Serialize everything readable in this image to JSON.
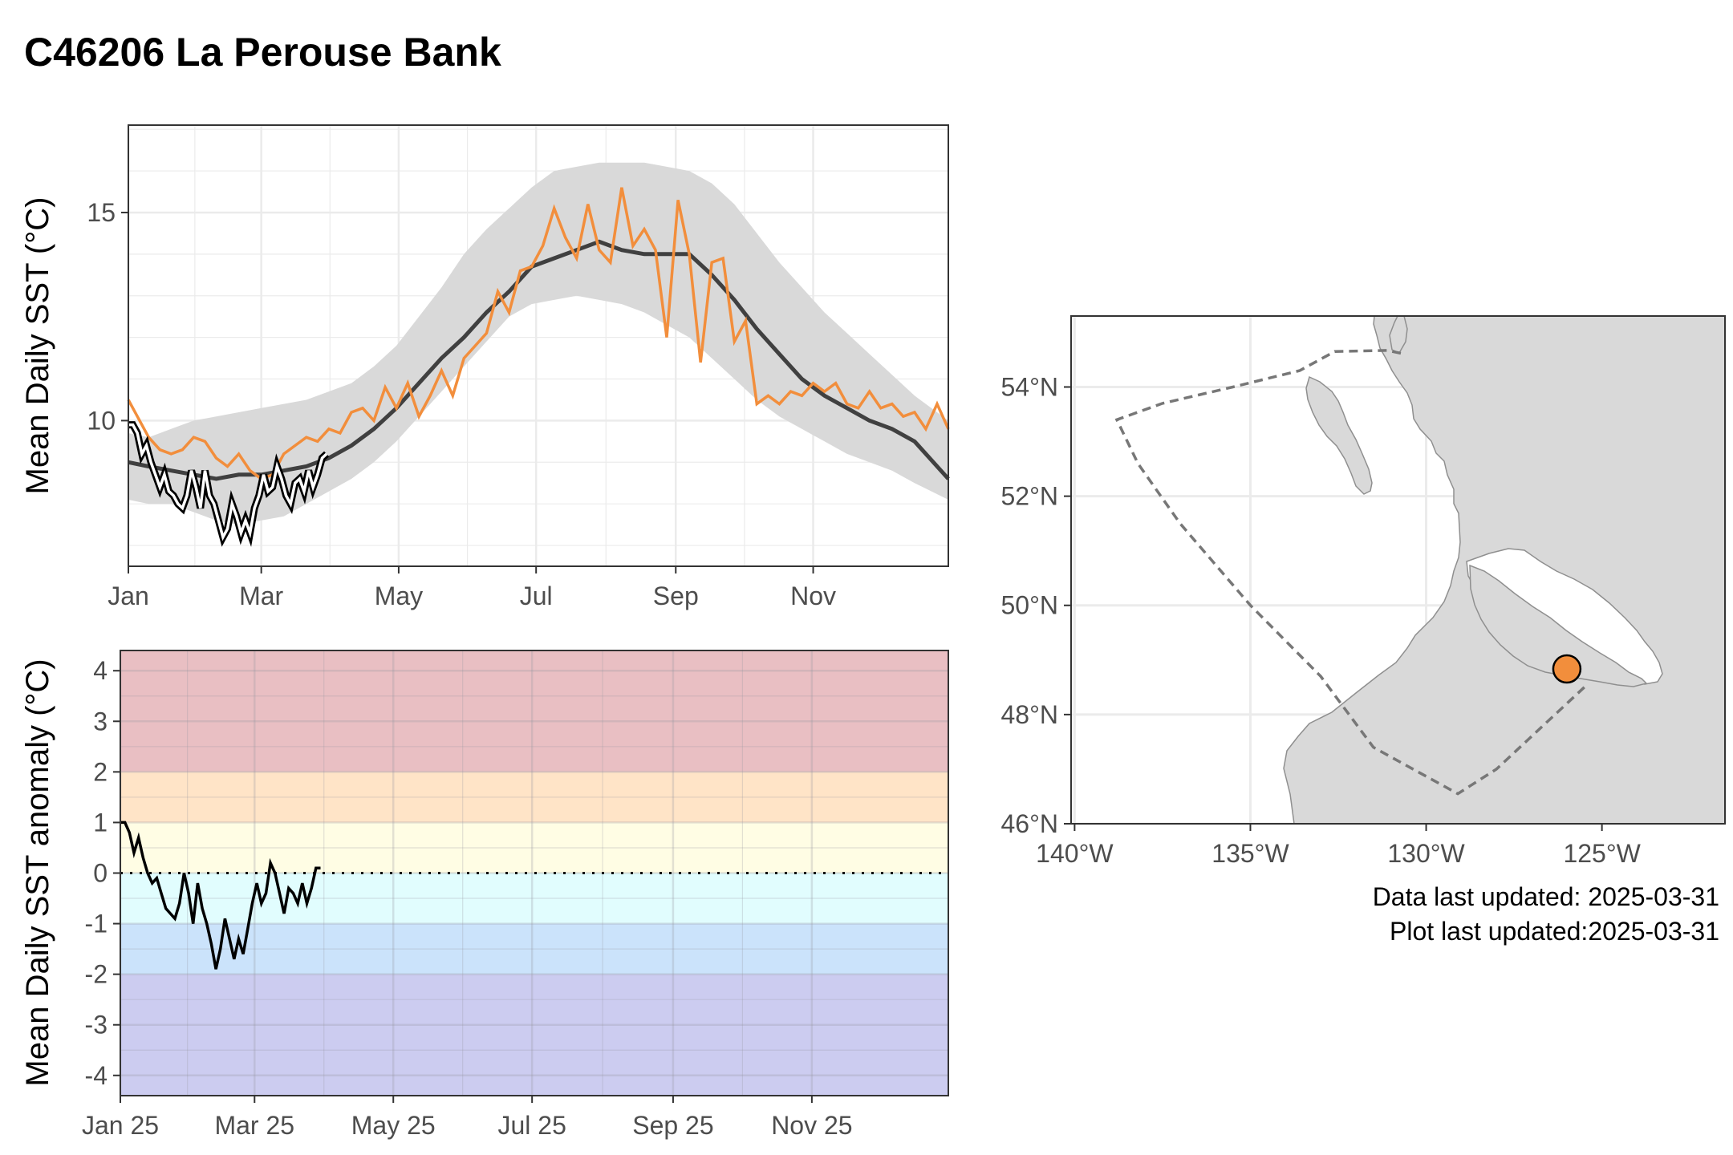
{
  "title": "C46206 La Perouse Bank",
  "footer": {
    "data_updated": "Data last updated: 2025-03-31",
    "plot_updated": "Plot last updated:2025-03-31"
  },
  "colors": {
    "current_year": "#F28E3C",
    "climatology": "#404040",
    "range_band": "#D9D9D9",
    "land": "#D9D9D9",
    "buoy": "#F28E3C"
  },
  "chart_data": [
    {
      "type": "line",
      "ylabel": "Mean Daily SST (°C)",
      "xlabel": "",
      "ylim": [
        6.5,
        17.1
      ],
      "xlim": [
        1,
        365
      ],
      "x_ticks": [
        {
          "day": 1,
          "label": "Jan"
        },
        {
          "day": 60,
          "label": "Mar"
        },
        {
          "day": 121,
          "label": "May"
        },
        {
          "day": 182,
          "label": "Jul"
        },
        {
          "day": 244,
          "label": "Sep"
        },
        {
          "day": 305,
          "label": "Nov"
        }
      ],
      "y_ticks": [
        10,
        15
      ],
      "grid": true,
      "series": [
        {
          "style": "band",
          "x": [
            1,
            10,
            20,
            30,
            40,
            50,
            60,
            70,
            80,
            90,
            100,
            110,
            120,
            130,
            140,
            150,
            160,
            170,
            180,
            190,
            200,
            210,
            220,
            230,
            240,
            250,
            260,
            270,
            280,
            290,
            300,
            310,
            320,
            330,
            340,
            350,
            365
          ],
          "upper": [
            9.7,
            9.6,
            9.8,
            10.0,
            10.1,
            10.2,
            10.3,
            10.4,
            10.5,
            10.7,
            10.9,
            11.3,
            11.8,
            12.5,
            13.2,
            14.0,
            14.6,
            15.1,
            15.6,
            16.0,
            16.1,
            16.2,
            16.2,
            16.2,
            16.1,
            16.0,
            15.7,
            15.2,
            14.5,
            13.8,
            13.2,
            12.6,
            12.1,
            11.6,
            11.1,
            10.6,
            10.0
          ],
          "lower": [
            8.1,
            8.0,
            8.0,
            7.8,
            7.6,
            7.5,
            7.6,
            7.7,
            8.0,
            8.3,
            8.6,
            9.0,
            9.5,
            10.1,
            10.7,
            11.3,
            11.9,
            12.5,
            12.8,
            12.9,
            13.0,
            12.9,
            12.8,
            12.6,
            12.3,
            12.0,
            11.5,
            11.0,
            10.5,
            10.1,
            9.8,
            9.5,
            9.2,
            9.0,
            8.8,
            8.5,
            8.1
          ]
        },
        {
          "style": "climatology",
          "x": [
            1,
            10,
            20,
            30,
            40,
            50,
            60,
            70,
            80,
            90,
            100,
            110,
            120,
            130,
            140,
            150,
            160,
            170,
            180,
            190,
            200,
            210,
            220,
            230,
            240,
            250,
            260,
            270,
            280,
            290,
            300,
            310,
            320,
            330,
            340,
            350,
            365
          ],
          "values": [
            9.0,
            8.9,
            8.8,
            8.7,
            8.6,
            8.7,
            8.7,
            8.8,
            8.9,
            9.1,
            9.4,
            9.8,
            10.3,
            10.9,
            11.5,
            12.0,
            12.6,
            13.1,
            13.7,
            13.9,
            14.1,
            14.3,
            14.1,
            14.0,
            14.0,
            14.0,
            13.5,
            12.9,
            12.2,
            11.6,
            11.0,
            10.6,
            10.3,
            10.0,
            9.8,
            9.5,
            8.6
          ]
        },
        {
          "name": "",
          "style": "prior-year",
          "x": [
            1,
            5,
            10,
            15,
            20,
            25,
            30,
            35,
            40,
            45,
            50,
            55,
            60,
            65,
            70,
            75,
            80,
            85,
            90,
            95,
            100,
            105,
            110,
            115,
            120,
            125,
            130,
            135,
            140,
            145,
            150,
            155,
            160,
            165,
            170,
            175,
            180,
            185,
            190,
            195,
            200,
            205,
            210,
            215,
            220,
            225,
            230,
            235,
            240,
            245,
            250,
            255,
            260,
            265,
            270,
            275,
            280,
            285,
            290,
            295,
            300,
            305,
            310,
            315,
            320,
            325,
            330,
            335,
            340,
            345,
            350,
            355,
            360,
            365
          ],
          "values": [
            10.5,
            10.1,
            9.6,
            9.3,
            9.2,
            9.3,
            9.6,
            9.5,
            9.1,
            8.9,
            9.2,
            8.8,
            8.6,
            8.7,
            9.2,
            9.4,
            9.6,
            9.5,
            9.8,
            9.7,
            10.2,
            10.3,
            10.0,
            10.8,
            10.3,
            10.9,
            10.1,
            10.6,
            11.2,
            10.6,
            11.5,
            11.8,
            12.1,
            13.1,
            12.6,
            13.6,
            13.7,
            14.2,
            15.1,
            14.4,
            13.9,
            15.2,
            14.1,
            13.8,
            15.6,
            14.2,
            14.6,
            14.1,
            12.0,
            15.3,
            14.0,
            11.4,
            13.8,
            13.9,
            11.9,
            12.4,
            10.4,
            10.6,
            10.4,
            10.7,
            10.6,
            10.9,
            10.7,
            10.9,
            10.4,
            10.3,
            10.7,
            10.3,
            10.4,
            10.1,
            10.2,
            9.8,
            10.4,
            9.8
          ]
        },
        {
          "name": "",
          "style": "current-year",
          "x": [
            1,
            3,
            5,
            7,
            9,
            11,
            13,
            15,
            17,
            19,
            21,
            23,
            25,
            27,
            29,
            31,
            33,
            35,
            37,
            39,
            41,
            43,
            45,
            47,
            49,
            51,
            53,
            55,
            57,
            59,
            61,
            63,
            65,
            67,
            69,
            71,
            73,
            75,
            77,
            79,
            81,
            83,
            85,
            87,
            89
          ],
          "values": [
            9.9,
            9.9,
            9.7,
            9.2,
            9.4,
            9.0,
            8.7,
            8.4,
            8.7,
            8.3,
            8.2,
            8.0,
            7.9,
            8.2,
            8.8,
            8.4,
            7.9,
            8.8,
            8.2,
            8.0,
            7.6,
            7.2,
            7.4,
            8.0,
            7.7,
            7.3,
            7.6,
            7.3,
            7.9,
            8.2,
            8.7,
            8.3,
            8.4,
            8.9,
            8.6,
            8.2,
            8.0,
            8.5,
            8.6,
            8.3,
            8.8,
            8.4,
            8.7,
            9.1,
            9.2
          ]
        }
      ]
    },
    {
      "type": "line",
      "ylabel": "Mean Daily SST anomaly (°C)",
      "xlabel": "",
      "ylim": [
        -4.4,
        4.4
      ],
      "xlim": [
        1,
        365
      ],
      "x_ticks": [
        {
          "day": 1,
          "label": "Jan 25"
        },
        {
          "day": 60,
          "label": "Mar 25"
        },
        {
          "day": 121,
          "label": "May 25"
        },
        {
          "day": 182,
          "label": "Jul 25"
        },
        {
          "day": 244,
          "label": "Sep 25"
        },
        {
          "day": 305,
          "label": "Nov 25"
        }
      ],
      "y_ticks": [
        4,
        3,
        2,
        1,
        0,
        -1,
        -2,
        -3,
        -4
      ],
      "y_tick_labels": [
        "4",
        "3",
        "2",
        "1",
        "0",
        "-1",
        "-2",
        "-3",
        "-4"
      ],
      "grid": true,
      "bands": [
        {
          "from": 2,
          "to": 4.4,
          "color": "#E9BFC3"
        },
        {
          "from": 1,
          "to": 2,
          "color": "#FFE4C7"
        },
        {
          "from": 0,
          "to": 1,
          "color": "#FFFDE4"
        },
        {
          "from": -1,
          "to": 0,
          "color": "#E1FDFE"
        },
        {
          "from": -2,
          "to": -1,
          "color": "#CBE3FB"
        },
        {
          "from": -4.4,
          "to": -2,
          "color": "#CCCCF0"
        }
      ],
      "zero_line": "dotted",
      "series": [
        {
          "name": "",
          "x": [
            1,
            3,
            5,
            7,
            9,
            11,
            13,
            15,
            17,
            19,
            21,
            23,
            25,
            27,
            29,
            31,
            33,
            35,
            37,
            39,
            41,
            43,
            45,
            47,
            49,
            51,
            53,
            55,
            57,
            59,
            61,
            63,
            65,
            67,
            69,
            71,
            73,
            75,
            77,
            79,
            81,
            83,
            85,
            87,
            89
          ],
          "values": [
            1.0,
            1.0,
            0.8,
            0.4,
            0.7,
            0.3,
            0.0,
            -0.2,
            -0.1,
            -0.4,
            -0.7,
            -0.8,
            -0.9,
            -0.6,
            0.0,
            -0.4,
            -1.0,
            -0.2,
            -0.7,
            -1.0,
            -1.4,
            -1.9,
            -1.5,
            -0.9,
            -1.3,
            -1.7,
            -1.3,
            -1.6,
            -1.1,
            -0.6,
            -0.2,
            -0.6,
            -0.4,
            0.2,
            0.0,
            -0.4,
            -0.8,
            -0.3,
            -0.4,
            -0.6,
            -0.2,
            -0.6,
            -0.3,
            0.1,
            0.1
          ]
        }
      ]
    },
    {
      "type": "map",
      "x_ticks": [
        {
          "lon": -140,
          "label": "140°W"
        },
        {
          "lon": -135,
          "label": "135°W"
        },
        {
          "lon": -130,
          "label": "130°W"
        },
        {
          "lon": -125,
          "label": "125°W"
        }
      ],
      "y_ticks": [
        {
          "lat": 54,
          "label": "54°N"
        },
        {
          "lat": 52,
          "label": "52°N"
        },
        {
          "lat": 50,
          "label": "50°N"
        },
        {
          "lat": 48,
          "label": "48°N"
        },
        {
          "lat": 46,
          "label": "46°N"
        }
      ],
      "lon_range": [
        -140.1,
        -121.5
      ],
      "lat_range": [
        46.0,
        55.3
      ],
      "buoy": {
        "lon": -125.998,
        "lat": 48.835
      },
      "eez_boundary": [
        [
          -125.5,
          48.5
        ],
        [
          -128.0,
          47.0
        ],
        [
          -129.1,
          46.55
        ],
        [
          -131.5,
          47.4
        ],
        [
          -133.0,
          48.7
        ],
        [
          -135.0,
          50.0
        ],
        [
          -137.0,
          51.5
        ],
        [
          -138.2,
          52.6
        ],
        [
          -138.8,
          53.4
        ],
        [
          -137.5,
          53.7
        ],
        [
          -135.5,
          54.0
        ],
        [
          -133.6,
          54.3
        ],
        [
          -132.6,
          54.65
        ],
        [
          -131.1,
          54.67
        ],
        [
          -130.6,
          54.6
        ]
      ]
    }
  ]
}
